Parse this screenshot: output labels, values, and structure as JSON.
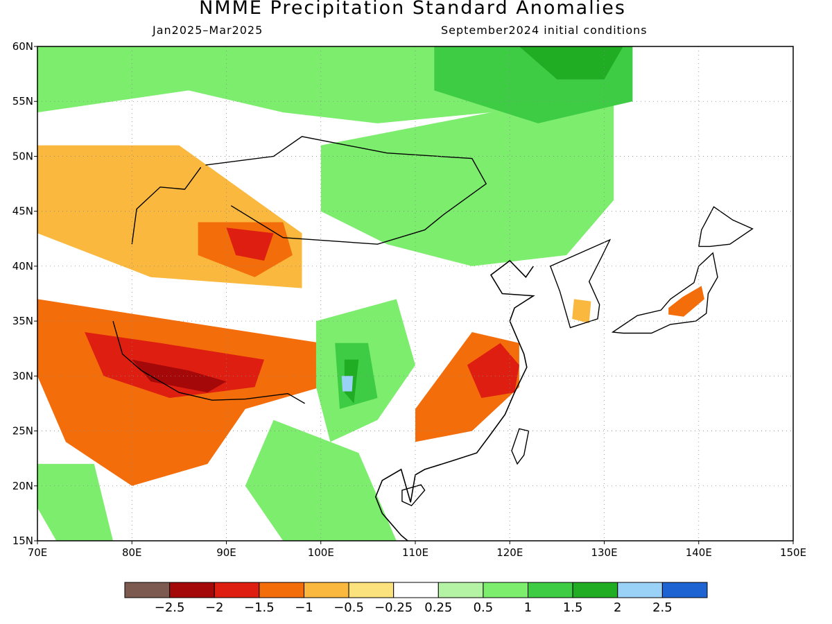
{
  "header": {
    "title": "NMME Precipitation Standard Anomalies",
    "period": "Jan2025–Mar2025",
    "initial_conditions": "September2024 initial conditions"
  },
  "map": {
    "lon_range": [
      70,
      150
    ],
    "lat_range": [
      15,
      60
    ],
    "lon_ticks": [
      "70E",
      "80E",
      "90E",
      "100E",
      "110E",
      "120E",
      "130E",
      "140E",
      "150E"
    ],
    "lat_ticks": [
      "15N",
      "20N",
      "25N",
      "30N",
      "35N",
      "40N",
      "45N",
      "50N",
      "55N",
      "60N"
    ],
    "grid": "dotted",
    "regions": [
      {
        "name": "northern-siberia-wet",
        "level": "1",
        "lon_lat": [
          [
            70,
            60
          ],
          [
            125,
            60
          ],
          [
            128,
            56
          ],
          [
            118,
            54
          ],
          [
            106,
            53
          ],
          [
            96,
            54
          ],
          [
            86,
            56
          ],
          [
            70,
            54
          ]
        ]
      },
      {
        "name": "mongolia-manchuria-wet",
        "level": "1",
        "lon_lat": [
          [
            100,
            51
          ],
          [
            118,
            54
          ],
          [
            131,
            57
          ],
          [
            131,
            46
          ],
          [
            126,
            41
          ],
          [
            116,
            40
          ],
          [
            107,
            42
          ],
          [
            100,
            45
          ]
        ]
      },
      {
        "name": "far-north-strong-wet",
        "level": "1.5",
        "lon_lat": [
          [
            112,
            60
          ],
          [
            133,
            60
          ],
          [
            133,
            55
          ],
          [
            123,
            53
          ],
          [
            112,
            56
          ]
        ]
      },
      {
        "name": "arctic-coast-very-wet",
        "level": "2",
        "lon_lat": [
          [
            121,
            60
          ],
          [
            132,
            60
          ],
          [
            130,
            57
          ],
          [
            125,
            57
          ]
        ]
      },
      {
        "name": "kazakhstan-dry",
        "level": "-0.5",
        "lon_lat": [
          [
            70,
            51
          ],
          [
            85,
            51
          ],
          [
            98,
            43
          ],
          [
            98,
            38
          ],
          [
            82,
            39
          ],
          [
            70,
            43
          ]
        ]
      },
      {
        "name": "tarim-dry",
        "level": "-1",
        "lon_lat": [
          [
            87,
            44
          ],
          [
            96,
            44
          ],
          [
            97,
            41
          ],
          [
            93,
            39
          ],
          [
            87,
            41
          ]
        ]
      },
      {
        "name": "tarim-core-dry",
        "level": "-1.5",
        "lon_lat": [
          [
            90,
            43.5
          ],
          [
            95,
            43
          ],
          [
            94,
            40.5
          ],
          [
            91,
            41
          ]
        ]
      },
      {
        "name": "tibet-dry",
        "level": "-1",
        "lon_lat": [
          [
            70,
            37
          ],
          [
            85,
            35
          ],
          [
            100,
            33
          ],
          [
            100,
            29
          ],
          [
            92,
            27
          ],
          [
            88,
            22
          ],
          [
            80,
            20
          ],
          [
            73,
            24
          ],
          [
            70,
            30
          ]
        ]
      },
      {
        "name": "tibet-core-dry",
        "level": "-1.5",
        "lon_lat": [
          [
            75,
            34
          ],
          [
            83,
            33
          ],
          [
            94,
            31.5
          ],
          [
            93,
            29
          ],
          [
            84,
            28
          ],
          [
            77,
            30
          ]
        ]
      },
      {
        "name": "himalaya-very-dry",
        "level": "-2",
        "lon_lat": [
          [
            80,
            31.5
          ],
          [
            86,
            30.5
          ],
          [
            90,
            29.5
          ],
          [
            88,
            28.5
          ],
          [
            82,
            29.5
          ]
        ]
      },
      {
        "name": "sichuan-wet",
        "level": "1",
        "lon_lat": [
          [
            99.5,
            35
          ],
          [
            108,
            37
          ],
          [
            110,
            31
          ],
          [
            106,
            26
          ],
          [
            101,
            24
          ],
          [
            99.5,
            29
          ]
        ]
      },
      {
        "name": "sichuan-core-wet",
        "level": "1.5",
        "lon_lat": [
          [
            101.5,
            33
          ],
          [
            105,
            33
          ],
          [
            106,
            28
          ],
          [
            102,
            27
          ]
        ]
      },
      {
        "name": "sichuan-very-wet",
        "level": "2",
        "lon_lat": [
          [
            102.5,
            31.5
          ],
          [
            104,
            31.5
          ],
          [
            103.5,
            27.5
          ],
          [
            102.5,
            28.5
          ]
        ]
      },
      {
        "name": "sichuan-extreme-wet",
        "level": "2.5",
        "lon_lat": [
          [
            102.2,
            30
          ],
          [
            103.4,
            30
          ],
          [
            103.3,
            28.6
          ],
          [
            102.3,
            28.6
          ]
        ]
      },
      {
        "name": "indochina-wet",
        "level": "1",
        "lon_lat": [
          [
            95,
            26
          ],
          [
            104,
            23
          ],
          [
            108,
            15
          ],
          [
            96,
            15
          ],
          [
            92,
            20
          ]
        ]
      },
      {
        "name": "yangtze-dry",
        "level": "-1",
        "lon_lat": [
          [
            110,
            27
          ],
          [
            116,
            34
          ],
          [
            121,
            33
          ],
          [
            121,
            29
          ],
          [
            116,
            25
          ],
          [
            110,
            24
          ]
        ]
      },
      {
        "name": "yangtze-core-dry",
        "level": "-1.5",
        "lon_lat": [
          [
            115.5,
            31
          ],
          [
            119,
            33
          ],
          [
            121,
            31
          ],
          [
            120.5,
            28.5
          ],
          [
            117,
            28
          ]
        ]
      },
      {
        "name": "india-wet",
        "level": "1",
        "lon_lat": [
          [
            70,
            22
          ],
          [
            76,
            22
          ],
          [
            78,
            15
          ],
          [
            72,
            15
          ],
          [
            70,
            18
          ]
        ]
      },
      {
        "name": "japan-dry",
        "level": "-1",
        "lon_lat": [
          [
            136.8,
            36.2
          ],
          [
            138.3,
            37.2
          ],
          [
            140.3,
            38.2
          ],
          [
            140.6,
            37
          ],
          [
            138.4,
            35.4
          ],
          [
            136.8,
            35.6
          ]
        ]
      },
      {
        "name": "korea-dry",
        "level": "-0.5",
        "lon_lat": [
          [
            126.8,
            37
          ],
          [
            128.6,
            36.8
          ],
          [
            128.4,
            34.8
          ],
          [
            126.6,
            35.2
          ]
        ]
      }
    ],
    "coastline": {
      "name": "east-asia-coastline",
      "lon_lat": [
        [
          122.5,
          40
        ],
        [
          121.7,
          39
        ],
        [
          120,
          40.5
        ],
        [
          118,
          39.2
        ],
        [
          119.2,
          37.5
        ],
        [
          122.5,
          37.3
        ],
        [
          120.5,
          36.2
        ],
        [
          120,
          35
        ],
        [
          121.5,
          32
        ],
        [
          121.8,
          30.8
        ],
        [
          120.5,
          28.5
        ],
        [
          119.5,
          26.5
        ],
        [
          117.8,
          24.5
        ],
        [
          116.5,
          23
        ],
        [
          114,
          22.3
        ],
        [
          111,
          21.5
        ],
        [
          110,
          21
        ],
        [
          109.5,
          18.5
        ],
        [
          108.5,
          21.5
        ],
        [
          106.5,
          20.5
        ],
        [
          105.8,
          19
        ],
        [
          106.5,
          17.5
        ],
        [
          108.5,
          15.5
        ],
        [
          109.2,
          15
        ]
      ]
    },
    "borders": [
      {
        "name": "mongolia-border",
        "lon_lat": [
          [
            87.8,
            49.2
          ],
          [
            95,
            50
          ],
          [
            98,
            51.8
          ],
          [
            107,
            50.3
          ],
          [
            116,
            49.8
          ],
          [
            117.5,
            47.5
          ],
          [
            113,
            44.7
          ],
          [
            111,
            43.3
          ],
          [
            106,
            42
          ],
          [
            96,
            42.6
          ],
          [
            90.5,
            45.5
          ]
        ]
      },
      {
        "name": "tibet-southern-border",
        "lon_lat": [
          [
            78,
            35
          ],
          [
            79,
            32
          ],
          [
            81,
            30.5
          ],
          [
            85,
            28.5
          ],
          [
            88.5,
            27.8
          ],
          [
            92,
            27.9
          ],
          [
            96.5,
            28.4
          ],
          [
            98.3,
            27.5
          ]
        ]
      },
      {
        "name": "kazakh-china-border",
        "lon_lat": [
          [
            80,
            42
          ],
          [
            80.5,
            45.2
          ],
          [
            83,
            47.2
          ],
          [
            85.6,
            47
          ],
          [
            87.3,
            49
          ]
        ]
      }
    ],
    "islands": [
      {
        "name": "taiwan",
        "lon_lat": [
          [
            121,
            25.2
          ],
          [
            122,
            25
          ],
          [
            121.5,
            22.8
          ],
          [
            120.8,
            22
          ],
          [
            120.2,
            23.2
          ]
        ]
      },
      {
        "name": "hainan",
        "lon_lat": [
          [
            108.6,
            19.6
          ],
          [
            110.6,
            20.1
          ],
          [
            111,
            19.6
          ],
          [
            109.6,
            18.2
          ],
          [
            108.6,
            18.6
          ]
        ]
      },
      {
        "name": "japan-honshu",
        "lon_lat": [
          [
            130.9,
            34
          ],
          [
            133.5,
            35.5
          ],
          [
            136,
            36
          ],
          [
            137,
            37
          ],
          [
            139.5,
            38.5
          ],
          [
            140,
            40
          ],
          [
            141.5,
            41.2
          ],
          [
            142,
            39
          ],
          [
            141,
            37.5
          ],
          [
            140.8,
            35.7
          ],
          [
            139.7,
            35
          ],
          [
            137,
            34.7
          ],
          [
            135,
            33.9
          ],
          [
            132,
            33.9
          ]
        ]
      },
      {
        "name": "japan-hokkaido",
        "lon_lat": [
          [
            140,
            41.8
          ],
          [
            140.3,
            43.3
          ],
          [
            141.6,
            45.4
          ],
          [
            143.6,
            44.2
          ],
          [
            145.7,
            43.4
          ],
          [
            143.3,
            42
          ],
          [
            141.2,
            41.8
          ]
        ]
      },
      {
        "name": "korea-peninsula",
        "lon_lat": [
          [
            124.3,
            40
          ],
          [
            125.3,
            37.7
          ],
          [
            126.4,
            34.4
          ],
          [
            129.3,
            35.2
          ],
          [
            129.5,
            36.5
          ],
          [
            128.4,
            38.6
          ],
          [
            129.7,
            40.8
          ],
          [
            130.6,
            42.4
          ]
        ]
      }
    ]
  },
  "colorbar": {
    "levels": [
      {
        "label": "-2.5",
        "color": "#7d5a4f"
      },
      {
        "label": "-2",
        "color": "#a50808"
      },
      {
        "label": "-1.5",
        "color": "#dd1e10"
      },
      {
        "label": "-1",
        "color": "#f46d0b"
      },
      {
        "label": "-0.5",
        "color": "#fbb83e"
      },
      {
        "label": "-0.25",
        "color": "#fce27d"
      },
      {
        "label": "0.25",
        "color": "#ffffff"
      },
      {
        "label": "0.5",
        "color": "#b4f2a4"
      },
      {
        "label": "1",
        "color": "#7ded6e"
      },
      {
        "label": "1.5",
        "color": "#3fcc45"
      },
      {
        "label": "2",
        "color": "#20ad24"
      },
      {
        "label": "2.5",
        "color": "#9ad1f6"
      },
      {
        "label": "",
        "color": "#1e63d2"
      }
    ],
    "tick_labels": [
      "−2.5",
      "−2",
      "−1.5",
      "−1",
      "−0.5",
      "−0.25",
      "0.25",
      "0.5",
      "1",
      "1.5",
      "2",
      "2.5"
    ]
  }
}
